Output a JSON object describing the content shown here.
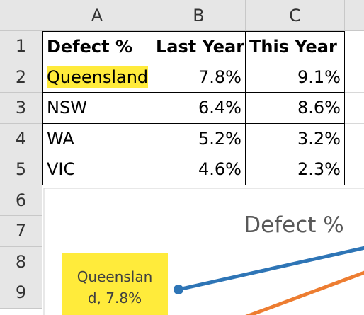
{
  "columns": [
    "A",
    "B",
    "C"
  ],
  "rows": [
    "1",
    "2",
    "3",
    "4",
    "5",
    "6",
    "7",
    "8",
    "9"
  ],
  "table": {
    "header": [
      "Defect %",
      "Last Year",
      "This Year"
    ],
    "rows": [
      [
        "Queensland",
        "7.8%",
        "9.1%"
      ],
      [
        "NSW",
        "6.4%",
        "8.6%"
      ],
      [
        "WA",
        "5.2%",
        "3.2%"
      ],
      [
        "VIC",
        "4.6%",
        "2.3%"
      ]
    ]
  },
  "chart": {
    "title": "Defect %",
    "data_label": [
      "Queenslan",
      "d, 7.8%"
    ]
  }
}
